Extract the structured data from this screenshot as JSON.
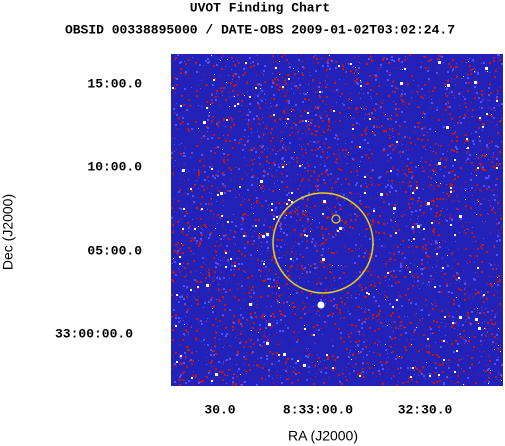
{
  "header": {
    "title": "UVOT Finding Chart",
    "subtitle": "OBSID 00338895000 / DATE-OBS 2009-01-02T03:02:24.7"
  },
  "axes": {
    "x_label": "RA (J2000)",
    "y_label": "Dec (J2000)",
    "x_ticks": [
      "30.0",
      "8:33:00.0",
      "32:30.0"
    ],
    "y_ticks": [
      "15:00.0",
      "10:00.0",
      "05:00.0",
      "33:00:00.0"
    ]
  }
}
